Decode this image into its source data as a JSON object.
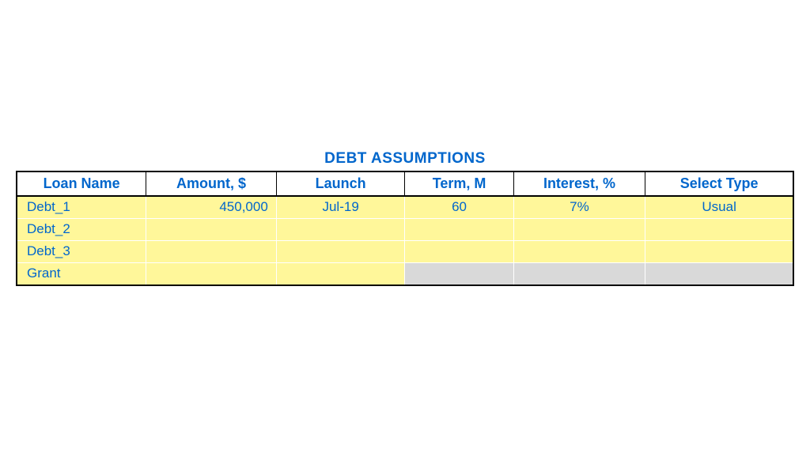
{
  "title": "DEBT ASSUMPTIONS",
  "colors": {
    "text_blue": "#0066cc",
    "header_bg": "#ffffff",
    "cell_yellow": "#fff79a",
    "cell_gray": "#d9d9d9",
    "border_black": "#000000",
    "inner_border": "#ffffff"
  },
  "typography": {
    "title_fontsize": 19,
    "header_fontsize": 18,
    "cell_fontsize": 17,
    "font_family": "Tahoma, Arial, sans-serif"
  },
  "columns": [
    {
      "key": "name",
      "label": "Loan Name",
      "align": "left",
      "width_pct": 16.6
    },
    {
      "key": "amount",
      "label": "Amount, $",
      "align": "right",
      "width_pct": 16.8
    },
    {
      "key": "launch",
      "label": "Launch",
      "align": "center",
      "width_pct": 16.6
    },
    {
      "key": "term",
      "label": "Term, M",
      "align": "center",
      "width_pct": 14.0
    },
    {
      "key": "interest",
      "label": "Interest, %",
      "align": "center",
      "width_pct": 17.0
    },
    {
      "key": "type",
      "label": "Select Type",
      "align": "center",
      "width_pct": 19.0
    }
  ],
  "rows": [
    {
      "name": "Debt_1",
      "amount": "450,000",
      "launch": "Jul-19",
      "term": "60",
      "interest": "7%",
      "type": "Usual",
      "cell_bg": [
        "yellow",
        "yellow",
        "yellow",
        "yellow",
        "yellow",
        "yellow"
      ]
    },
    {
      "name": "Debt_2",
      "amount": "",
      "launch": "",
      "term": "",
      "interest": "",
      "type": "",
      "cell_bg": [
        "yellow",
        "yellow",
        "yellow",
        "yellow",
        "yellow",
        "yellow"
      ]
    },
    {
      "name": "Debt_3",
      "amount": "",
      "launch": "",
      "term": "",
      "interest": "",
      "type": "",
      "cell_bg": [
        "yellow",
        "yellow",
        "yellow",
        "yellow",
        "yellow",
        "yellow"
      ]
    },
    {
      "name": "Grant",
      "amount": "",
      "launch": "",
      "term": "",
      "interest": "",
      "type": "",
      "cell_bg": [
        "yellow",
        "yellow",
        "yellow",
        "gray",
        "gray",
        "gray"
      ]
    }
  ]
}
